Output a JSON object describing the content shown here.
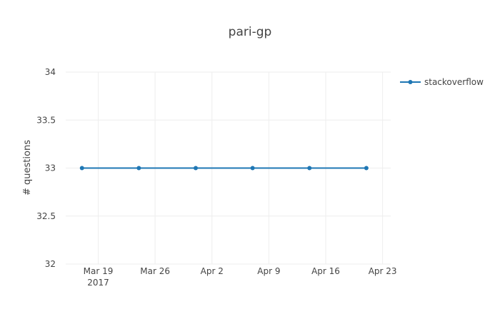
{
  "chart_data": {
    "type": "line",
    "title": "pari-gp",
    "xlabel": "",
    "ylabel": "# questions",
    "x_axis": {
      "type": "date",
      "range": [
        "2017-03-15",
        "2017-04-24"
      ],
      "ticks": [
        {
          "date": "2017-03-19",
          "label": "Mar 19",
          "sublabel": "2017"
        },
        {
          "date": "2017-03-26",
          "label": "Mar 26",
          "sublabel": ""
        },
        {
          "date": "2017-04-02",
          "label": "Apr 2",
          "sublabel": ""
        },
        {
          "date": "2017-04-09",
          "label": "Apr 9",
          "sublabel": ""
        },
        {
          "date": "2017-04-16",
          "label": "Apr 16",
          "sublabel": ""
        },
        {
          "date": "2017-04-23",
          "label": "Apr 23",
          "sublabel": ""
        }
      ]
    },
    "y_axis": {
      "range": [
        32,
        34
      ],
      "ticks": [
        {
          "value": 32,
          "label": "32"
        },
        {
          "value": 32.5,
          "label": "32.5"
        },
        {
          "value": 33,
          "label": "33"
        },
        {
          "value": 33.5,
          "label": "33.5"
        },
        {
          "value": 34,
          "label": "34"
        }
      ]
    },
    "grid": true,
    "legend_position": "top-right",
    "series": [
      {
        "name": "stackoverflow",
        "color": "#1f77b4",
        "points": [
          {
            "x": "2017-03-17",
            "y": 33
          },
          {
            "x": "2017-03-24",
            "y": 33
          },
          {
            "x": "2017-03-31",
            "y": 33
          },
          {
            "x": "2017-04-07",
            "y": 33
          },
          {
            "x": "2017-04-14",
            "y": 33
          },
          {
            "x": "2017-04-21",
            "y": 33
          }
        ]
      }
    ]
  }
}
